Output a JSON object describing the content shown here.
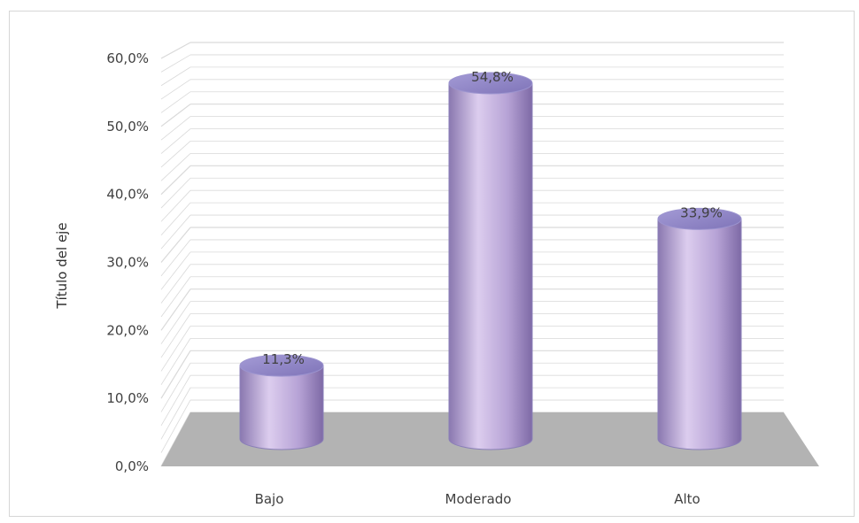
{
  "chart_data": {
    "type": "bar",
    "style": "3d-cylinder",
    "title": "",
    "xlabel": "",
    "ylabel": "Título del eje",
    "categories": [
      "Bajo",
      "Moderado",
      "Alto"
    ],
    "values": [
      11.3,
      54.8,
      33.9
    ],
    "data_labels": [
      "11,3%",
      "54,8%",
      "33,9%"
    ],
    "yticks": [
      0,
      10,
      20,
      30,
      40,
      50,
      60
    ],
    "ytick_labels": [
      "0,0%",
      "10,0%",
      "20,0%",
      "30,0%",
      "40,0%",
      "50,0%",
      "60,0%"
    ],
    "ylim": [
      0,
      60
    ],
    "grid": true,
    "legend": "none",
    "colors": {
      "bar_light": "#dccdee",
      "bar_mid": "#b7a3d6",
      "bar_dark": "#7e6aa6",
      "bar_top": "#8f86c8",
      "floor": "#b3b3b3",
      "grid": "#d9d9d9"
    }
  }
}
